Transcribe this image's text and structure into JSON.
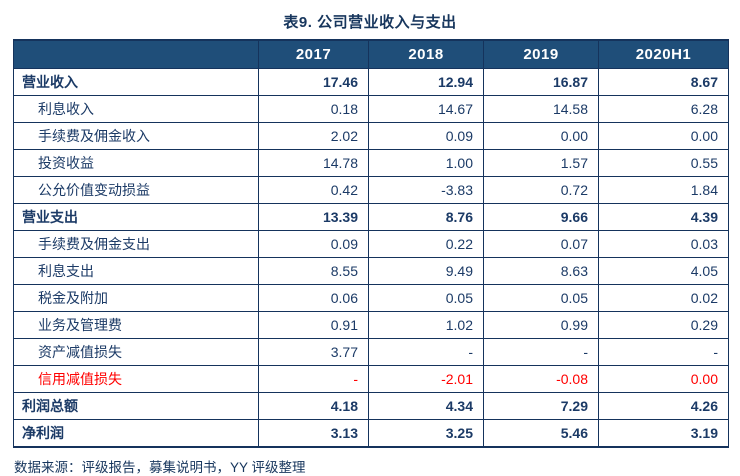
{
  "title": "表9. 公司营业收入与支出",
  "table": {
    "columns": [
      "",
      "2017",
      "2018",
      "2019",
      "2020H1"
    ],
    "rows": [
      {
        "label": "营业收入",
        "values": [
          "17.46",
          "12.94",
          "16.87",
          "8.67"
        ],
        "style": "section"
      },
      {
        "label": "利息收入",
        "values": [
          "0.18",
          "14.67",
          "14.58",
          "6.28"
        ],
        "style": "sub"
      },
      {
        "label": "手续费及佣金收入",
        "values": [
          "2.02",
          "0.09",
          "0.00",
          "0.00"
        ],
        "style": "sub"
      },
      {
        "label": "投资收益",
        "values": [
          "14.78",
          "1.00",
          "1.57",
          "0.55"
        ],
        "style": "sub"
      },
      {
        "label": "公允价值变动损益",
        "values": [
          "0.42",
          "-3.83",
          "0.72",
          "1.84"
        ],
        "style": "sub"
      },
      {
        "label": "营业支出",
        "values": [
          "13.39",
          "8.76",
          "9.66",
          "4.39"
        ],
        "style": "section"
      },
      {
        "label": "手续费及佣金支出",
        "values": [
          "0.09",
          "0.22",
          "0.07",
          "0.03"
        ],
        "style": "sub"
      },
      {
        "label": "利息支出",
        "values": [
          "8.55",
          "9.49",
          "8.63",
          "4.05"
        ],
        "style": "sub"
      },
      {
        "label": "税金及附加",
        "values": [
          "0.06",
          "0.05",
          "0.05",
          "0.02"
        ],
        "style": "sub"
      },
      {
        "label": "业务及管理费",
        "values": [
          "0.91",
          "1.02",
          "0.99",
          "0.29"
        ],
        "style": "sub"
      },
      {
        "label": "资产减值损失",
        "values": [
          "3.77",
          "-",
          "-",
          "-"
        ],
        "style": "sub"
      },
      {
        "label": "信用减值损失",
        "values": [
          "-",
          "-2.01",
          "-0.08",
          "0.00"
        ],
        "style": "sub red"
      },
      {
        "label": "利润总额",
        "values": [
          "4.18",
          "4.34",
          "7.29",
          "4.26"
        ],
        "style": "section"
      },
      {
        "label": "净利润",
        "values": [
          "3.13",
          "3.25",
          "5.46",
          "3.19"
        ],
        "style": "section"
      }
    ]
  },
  "footer": {
    "source_note": "数据来源：评级报告，募集说明书，YY 评级整理"
  },
  "colors": {
    "header_bg": "#1F4E79",
    "header_text": "#FFFFFF",
    "body_text": "#1B3A66",
    "title_text": "#17365D",
    "border": "#15335C",
    "negative_red": "#FF0000"
  }
}
